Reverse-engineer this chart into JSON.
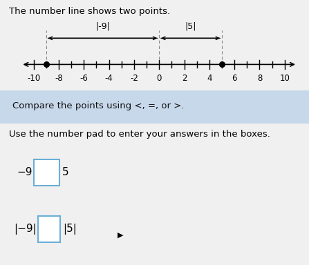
{
  "title": "The number line shows two points.",
  "compare_text": "Compare the points using <, =, or >.",
  "instruction_text": "Use the number pad to enter your answers in the boxes.",
  "number_line_min": -10,
  "number_line_max": 10,
  "point1": -9,
  "point2": 5,
  "label1": "|-9|",
  "label2": "|5|",
  "bg_color": "#f0f0f0",
  "number_line_bg": "#f0f0f0",
  "box_edge_color": "#6aafd6",
  "compare_bg": "#c8d8eb",
  "title_fontsize": 9.5,
  "body_fontsize": 9.5,
  "nl_fontsize": 8.5,
  "row_fontsize": 11
}
